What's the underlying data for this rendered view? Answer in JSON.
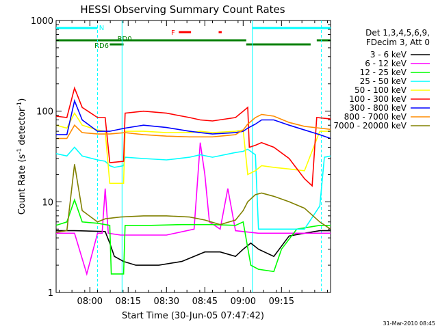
{
  "chart_data": {
    "type": "line",
    "title": "HESSI Observing Summary Count Rates",
    "xlabel": "Start Time (30-Jun-05 07:47:42)",
    "ylabel_main": "Count Rate (s",
    "ylabel_sup1": "-1",
    "ylabel_mid": " detector",
    "ylabel_sup2": "-1",
    "ylabel_end": ")",
    "y_scale": "log",
    "ylim": [
      1,
      1000
    ],
    "xlim_minutes": [
      7.78,
      9.57
    ],
    "x_tick_labels": [
      "08:00",
      "08:15",
      "08:30",
      "08:45",
      "09:00",
      "09:15"
    ],
    "x_tick_minutes": [
      8.0,
      8.25,
      8.5,
      8.75,
      9.0,
      9.25
    ],
    "y_tick_labels": [
      "1",
      "10",
      "100",
      "1000"
    ],
    "y_tick_values": [
      1,
      10,
      100,
      1000
    ],
    "legend_position": "right",
    "legend_header": [
      "Det 1,3,4,5,6,9,",
      "FDecim 3, Att 0"
    ],
    "footer_date": "31-Mar-2010 08:45",
    "flags": {
      "N_label": "N",
      "F_label": "F",
      "RD0_label": "RD0",
      "RD6_label": "RD6"
    },
    "series": [
      {
        "name": "3 - 6 keV",
        "color": "#000000",
        "points": [
          [
            7.78,
            4.8
          ],
          [
            7.9,
            4.8
          ],
          [
            8.1,
            4.7
          ],
          [
            8.13,
            3.5
          ],
          [
            8.16,
            2.5
          ],
          [
            8.22,
            2.2
          ],
          [
            8.3,
            2.0
          ],
          [
            8.45,
            2.0
          ],
          [
            8.6,
            2.2
          ],
          [
            8.75,
            2.8
          ],
          [
            8.85,
            2.8
          ],
          [
            8.95,
            2.5
          ],
          [
            9.0,
            3.0
          ],
          [
            9.05,
            3.5
          ],
          [
            9.1,
            3.0
          ],
          [
            9.2,
            2.5
          ],
          [
            9.3,
            4.2
          ],
          [
            9.4,
            4.5
          ],
          [
            9.5,
            4.8
          ],
          [
            9.57,
            4.8
          ]
        ]
      },
      {
        "name": "6 - 12 keV",
        "color": "#ff00ff",
        "points": [
          [
            7.78,
            4.5
          ],
          [
            7.9,
            4.5
          ],
          [
            7.98,
            1.6
          ],
          [
            8.05,
            4.5
          ],
          [
            8.08,
            4.5
          ],
          [
            8.1,
            14
          ],
          [
            8.12,
            4.5
          ],
          [
            8.2,
            4.3
          ],
          [
            8.3,
            4.3
          ],
          [
            8.5,
            4.3
          ],
          [
            8.68,
            5
          ],
          [
            8.72,
            45
          ],
          [
            8.75,
            20
          ],
          [
            8.78,
            6
          ],
          [
            8.85,
            5
          ],
          [
            8.9,
            14
          ],
          [
            8.95,
            4.8
          ],
          [
            9.1,
            4.5
          ],
          [
            9.3,
            4.5
          ],
          [
            9.5,
            4.5
          ],
          [
            9.57,
            4.5
          ]
        ]
      },
      {
        "name": "12 - 25 keV",
        "color": "#00ff00",
        "points": [
          [
            7.78,
            5.5
          ],
          [
            7.85,
            6
          ],
          [
            7.9,
            10.5
          ],
          [
            7.95,
            6
          ],
          [
            8.05,
            5.8
          ],
          [
            8.13,
            5.5
          ],
          [
            8.14,
            1.6
          ],
          [
            8.22,
            1.6
          ],
          [
            8.23,
            5.5
          ],
          [
            8.4,
            5.5
          ],
          [
            8.6,
            5.6
          ],
          [
            8.8,
            5.6
          ],
          [
            8.95,
            5.5
          ],
          [
            9.0,
            6
          ],
          [
            9.05,
            2.0
          ],
          [
            9.1,
            1.8
          ],
          [
            9.2,
            1.7
          ],
          [
            9.25,
            3.0
          ],
          [
            9.35,
            5
          ],
          [
            9.5,
            5.5
          ],
          [
            9.57,
            5.5
          ]
        ]
      },
      {
        "name": "25 - 50 keV",
        "color": "#00ffff",
        "points": [
          [
            7.78,
            34
          ],
          [
            7.85,
            32
          ],
          [
            7.9,
            40
          ],
          [
            7.95,
            32
          ],
          [
            8.05,
            29
          ],
          [
            8.1,
            28
          ],
          [
            8.13,
            25
          ],
          [
            8.16,
            24
          ],
          [
            8.22,
            25
          ],
          [
            8.23,
            31
          ],
          [
            8.35,
            30
          ],
          [
            8.5,
            29
          ],
          [
            8.65,
            31
          ],
          [
            8.72,
            33
          ],
          [
            8.8,
            31
          ],
          [
            8.95,
            35
          ],
          [
            9.0,
            36
          ],
          [
            9.03,
            38
          ],
          [
            9.08,
            33
          ],
          [
            9.1,
            5
          ],
          [
            9.2,
            5
          ],
          [
            9.3,
            5
          ],
          [
            9.4,
            5
          ],
          [
            9.5,
            9
          ],
          [
            9.53,
            31
          ],
          [
            9.57,
            32
          ]
        ]
      },
      {
        "name": "50 - 100 keV",
        "color": "#ffff00",
        "points": [
          [
            7.78,
            70
          ],
          [
            7.85,
            65
          ],
          [
            7.9,
            95
          ],
          [
            7.95,
            70
          ],
          [
            8.05,
            62
          ],
          [
            8.1,
            60
          ],
          [
            8.13,
            16
          ],
          [
            8.22,
            16
          ],
          [
            8.23,
            60
          ],
          [
            8.35,
            60
          ],
          [
            8.5,
            58
          ],
          [
            8.65,
            58
          ],
          [
            8.72,
            60
          ],
          [
            8.8,
            58
          ],
          [
            8.95,
            60
          ],
          [
            9.0,
            62
          ],
          [
            9.03,
            20
          ],
          [
            9.08,
            22
          ],
          [
            9.12,
            25
          ],
          [
            9.2,
            24
          ],
          [
            9.3,
            23
          ],
          [
            9.4,
            22
          ],
          [
            9.5,
            60
          ],
          [
            9.57,
            60
          ]
        ]
      },
      {
        "name": "100 - 300 keV",
        "color": "#ff0000",
        "points": [
          [
            7.78,
            88
          ],
          [
            7.85,
            85
          ],
          [
            7.9,
            180
          ],
          [
            7.95,
            110
          ],
          [
            8.05,
            85
          ],
          [
            8.1,
            85
          ],
          [
            8.13,
            27
          ],
          [
            8.22,
            28
          ],
          [
            8.23,
            95
          ],
          [
            8.35,
            100
          ],
          [
            8.5,
            95
          ],
          [
            8.65,
            85
          ],
          [
            8.72,
            80
          ],
          [
            8.8,
            78
          ],
          [
            8.95,
            85
          ],
          [
            9.0,
            100
          ],
          [
            9.03,
            110
          ],
          [
            9.04,
            40
          ],
          [
            9.08,
            42
          ],
          [
            9.12,
            45
          ],
          [
            9.2,
            40
          ],
          [
            9.3,
            30
          ],
          [
            9.4,
            18
          ],
          [
            9.45,
            15
          ],
          [
            9.48,
            85
          ],
          [
            9.57,
            82
          ]
        ]
      },
      {
        "name": "300 - 800 keV",
        "color": "#0000ff",
        "points": [
          [
            7.78,
            55
          ],
          [
            7.85,
            55
          ],
          [
            7.9,
            130
          ],
          [
            7.95,
            80
          ],
          [
            8.05,
            60
          ],
          [
            8.13,
            60
          ],
          [
            8.23,
            65
          ],
          [
            8.35,
            70
          ],
          [
            8.5,
            66
          ],
          [
            8.65,
            60
          ],
          [
            8.72,
            58
          ],
          [
            8.8,
            56
          ],
          [
            8.95,
            58
          ],
          [
            9.0,
            60
          ],
          [
            9.03,
            65
          ],
          [
            9.08,
            72
          ],
          [
            9.12,
            80
          ],
          [
            9.2,
            80
          ],
          [
            9.3,
            70
          ],
          [
            9.4,
            62
          ],
          [
            9.5,
            55
          ],
          [
            9.57,
            50
          ]
        ]
      },
      {
        "name": "800 - 7000 keV",
        "color": "#ff8c00",
        "points": [
          [
            7.78,
            50
          ],
          [
            7.85,
            50
          ],
          [
            7.9,
            70
          ],
          [
            7.95,
            58
          ],
          [
            8.05,
            56
          ],
          [
            8.13,
            56
          ],
          [
            8.23,
            58
          ],
          [
            8.35,
            55
          ],
          [
            8.5,
            53
          ],
          [
            8.65,
            52
          ],
          [
            8.72,
            52
          ],
          [
            8.8,
            52
          ],
          [
            8.95,
            55
          ],
          [
            9.0,
            62
          ],
          [
            9.03,
            72
          ],
          [
            9.08,
            85
          ],
          [
            9.12,
            92
          ],
          [
            9.2,
            88
          ],
          [
            9.3,
            75
          ],
          [
            9.4,
            68
          ],
          [
            9.5,
            65
          ],
          [
            9.57,
            63
          ]
        ]
      },
      {
        "name": "7000 - 20000 keV",
        "color": "#808000",
        "points": [
          [
            7.78,
            4.6
          ],
          [
            7.85,
            4.8
          ],
          [
            7.9,
            26
          ],
          [
            7.95,
            8
          ],
          [
            8.05,
            6
          ],
          [
            8.1,
            6.5
          ],
          [
            8.2,
            6.8
          ],
          [
            8.35,
            7
          ],
          [
            8.5,
            7
          ],
          [
            8.65,
            6.8
          ],
          [
            8.75,
            6.3
          ],
          [
            8.85,
            5.6
          ],
          [
            8.95,
            6.3
          ],
          [
            9.0,
            8
          ],
          [
            9.03,
            10
          ],
          [
            9.08,
            12
          ],
          [
            9.12,
            12.5
          ],
          [
            9.2,
            11.5
          ],
          [
            9.3,
            10
          ],
          [
            9.4,
            8.5
          ],
          [
            9.5,
            6
          ],
          [
            9.57,
            5
          ]
        ]
      }
    ]
  }
}
